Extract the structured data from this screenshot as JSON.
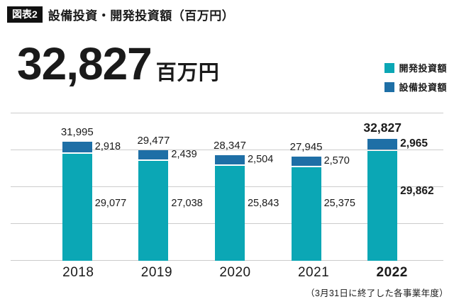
{
  "header": {
    "badge": "図表2",
    "title": "設備投資・開発投資額（百万円）"
  },
  "hero": {
    "value": "32,827",
    "unit": "百万円"
  },
  "legend": [
    {
      "label": "開発投資額",
      "color": "#0ba7b5"
    },
    {
      "label": "設備投資額",
      "color": "#1e6fa6"
    }
  ],
  "footnote": "（3月31日に終了した各事業年度）",
  "chart_data": {
    "type": "bar",
    "stacked": true,
    "title": "設備投資・開発投資額（百万円）",
    "categories": [
      "2018",
      "2019",
      "2020",
      "2021",
      "2022"
    ],
    "series": [
      {
        "name": "開発投資額",
        "color": "#0ba7b5",
        "values": [
          29077,
          27038,
          25843,
          25375,
          29862
        ]
      },
      {
        "name": "設備投資額",
        "color": "#1e6fa6",
        "values": [
          2918,
          2439,
          2504,
          2570,
          2965
        ]
      }
    ],
    "totals": [
      31995,
      29477,
      28347,
      27945,
      32827
    ],
    "total_labels": [
      "31,995",
      "29,477",
      "28,347",
      "27,945",
      "32,827"
    ],
    "cap_labels": [
      "2,918",
      "2,439",
      "2,504",
      "2,570",
      "2,965"
    ],
    "dev_labels": [
      "29,077",
      "27,038",
      "25,843",
      "25,375",
      "29,862"
    ],
    "ylim": [
      0,
      40000
    ],
    "grid": true,
    "gridline_count": 5,
    "legend_position": "top-right",
    "highlight_index": 4,
    "xlabel": "",
    "ylabel": ""
  }
}
